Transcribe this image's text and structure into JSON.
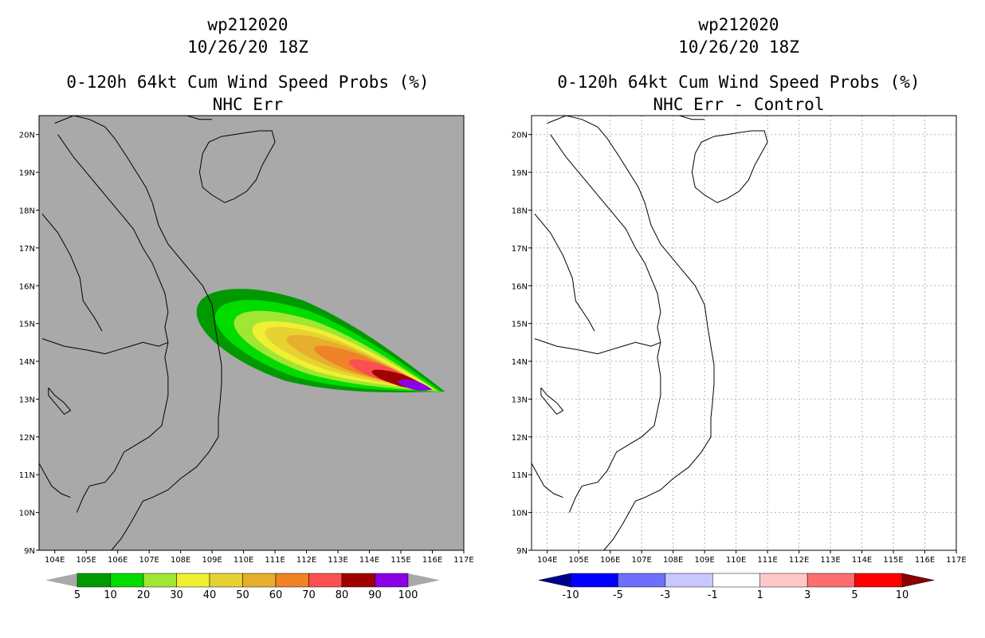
{
  "colors": {
    "left_background": "#a9a9a9",
    "right_background": "#ffffff",
    "prob_levels": [
      "#009a00",
      "#00dc00",
      "#a0e632",
      "#f0f032",
      "#e6d232",
      "#e6af2d",
      "#f08228",
      "#fa5050",
      "#a00000",
      "#8c00e6"
    ],
    "diff_levels": [
      "#00008c",
      "#0000ff",
      "#6e6eff",
      "#c8c8ff",
      "#ffffff",
      "#ffc8c8",
      "#ff6e6e",
      "#ff0000",
      "#8c0000"
    ]
  },
  "chart_data": [
    {
      "type": "heatmap",
      "title_lines": [
        "wp212020",
        "10/26/20 18Z",
        "0-120h 64kt Cum Wind Speed Probs (%)",
        "NHC Err"
      ],
      "xlim": [
        103.5,
        117
      ],
      "ylim": [
        9,
        20.5
      ],
      "x_ticks": [
        104,
        105,
        106,
        107,
        108,
        109,
        110,
        111,
        112,
        113,
        114,
        115,
        116,
        117
      ],
      "x_tick_labels": [
        "104E",
        "105E",
        "106E",
        "107E",
        "108E",
        "109E",
        "110E",
        "111E",
        "112E",
        "113E",
        "114E",
        "115E",
        "116E",
        "117E"
      ],
      "y_ticks": [
        9,
        10,
        11,
        12,
        13,
        14,
        15,
        16,
        17,
        18,
        19,
        20
      ],
      "y_tick_labels": [
        "9N",
        "10N",
        "11N",
        "12N",
        "13N",
        "14N",
        "15N",
        "16N",
        "17N",
        "18N",
        "19N",
        "20N"
      ],
      "grid": false,
      "colorbar": {
        "labels": [
          "5",
          "10",
          "20",
          "30",
          "40",
          "50",
          "60",
          "70",
          "80",
          "90",
          "100"
        ],
        "arrows": "both"
      },
      "probability_contours": [
        {
          "level": 5,
          "center": [
            111.6,
            14.55
          ],
          "along_deg": 3.2,
          "across_deg": 1.1,
          "tip": [
            116.4,
            13.2
          ]
        },
        {
          "level": 10,
          "center": [
            111.9,
            14.45
          ],
          "along_deg": 2.9,
          "across_deg": 0.9,
          "tip": [
            116.3,
            13.2
          ]
        },
        {
          "level": 20,
          "center": [
            112.2,
            14.35
          ],
          "along_deg": 2.6,
          "across_deg": 0.7,
          "tip": [
            116.2,
            13.2
          ]
        },
        {
          "level": 30,
          "center": [
            112.5,
            14.25
          ],
          "along_deg": 2.3,
          "across_deg": 0.55,
          "tip": [
            116.1,
            13.25
          ]
        },
        {
          "level": 40,
          "center": [
            112.7,
            14.2
          ],
          "along_deg": 2.1,
          "across_deg": 0.43,
          "tip": [
            116.0,
            13.25
          ]
        },
        {
          "level": 50,
          "center": [
            113.1,
            14.1
          ],
          "along_deg": 1.8,
          "across_deg": 0.33,
          "tip": [
            116.0,
            13.25
          ]
        },
        {
          "level": 60,
          "center": [
            113.6,
            13.95
          ],
          "along_deg": 1.4,
          "across_deg": 0.25,
          "tip": [
            116.0,
            13.25
          ]
        },
        {
          "level": 70,
          "center": [
            114.4,
            13.7
          ],
          "along_deg": 1.1,
          "across_deg": 0.2,
          "tip": [
            116.0,
            13.25
          ]
        },
        {
          "level": 80,
          "center": [
            115.0,
            13.5
          ],
          "along_deg": 0.95,
          "across_deg": 0.16,
          "tip": [
            116.0,
            13.25
          ]
        },
        {
          "level": 90,
          "center": [
            115.5,
            13.35
          ],
          "along_deg": 0.6,
          "across_deg": 0.12,
          "tip": [
            116.0,
            13.25
          ]
        }
      ]
    },
    {
      "type": "heatmap",
      "title_lines": [
        "wp212020",
        "10/26/20 18Z",
        "0-120h 64kt Cum Wind Speed Probs (%)",
        "NHC Err - Control"
      ],
      "xlim": [
        103.5,
        117
      ],
      "ylim": [
        9,
        20.5
      ],
      "x_ticks": [
        104,
        105,
        106,
        107,
        108,
        109,
        110,
        111,
        112,
        113,
        114,
        115,
        116,
        117
      ],
      "x_tick_labels": [
        "104E",
        "105E",
        "106E",
        "107E",
        "108E",
        "109E",
        "110E",
        "111E",
        "112E",
        "113E",
        "114E",
        "115E",
        "116E",
        "117E"
      ],
      "y_ticks": [
        9,
        10,
        11,
        12,
        13,
        14,
        15,
        16,
        17,
        18,
        19,
        20
      ],
      "y_tick_labels": [
        "9N",
        "10N",
        "11N",
        "12N",
        "13N",
        "14N",
        "15N",
        "16N",
        "17N",
        "18N",
        "19N",
        "20N"
      ],
      "grid": true,
      "colorbar": {
        "labels": [
          "-10",
          "-5",
          "-3",
          "-1",
          "1",
          "3",
          "5",
          "10"
        ],
        "arrows": "both"
      },
      "difference_contours": []
    }
  ],
  "coastlines": {
    "vietnam_china_coast": [
      [
        104.0,
        20.3
      ],
      [
        104.6,
        20.5
      ],
      [
        105.1,
        20.4
      ],
      [
        105.6,
        20.2
      ],
      [
        105.9,
        19.9
      ],
      [
        106.3,
        19.4
      ],
      [
        106.6,
        19.0
      ],
      [
        106.9,
        18.6
      ],
      [
        107.1,
        18.2
      ],
      [
        107.3,
        17.6
      ],
      [
        107.6,
        17.1
      ],
      [
        107.9,
        16.8
      ],
      [
        108.3,
        16.4
      ],
      [
        108.7,
        16.0
      ],
      [
        109.0,
        15.5
      ],
      [
        109.1,
        14.9
      ],
      [
        109.2,
        14.4
      ],
      [
        109.3,
        13.9
      ],
      [
        109.3,
        13.4
      ],
      [
        109.25,
        12.9
      ],
      [
        109.2,
        12.5
      ],
      [
        109.2,
        12.0
      ],
      [
        108.9,
        11.6
      ],
      [
        108.5,
        11.2
      ],
      [
        108.0,
        10.9
      ],
      [
        107.6,
        10.6
      ],
      [
        107.1,
        10.4
      ],
      [
        106.8,
        10.3
      ],
      [
        106.6,
        10.0
      ],
      [
        106.4,
        9.7
      ],
      [
        106.1,
        9.3
      ],
      [
        105.8,
        9.0
      ]
    ],
    "china_coast": [
      [
        108.2,
        20.5
      ],
      [
        108.6,
        20.4
      ],
      [
        109.0,
        20.4
      ]
    ],
    "hainan": [
      [
        108.7,
        19.5
      ],
      [
        108.9,
        19.8
      ],
      [
        109.3,
        19.95
      ],
      [
        109.7,
        20.0
      ],
      [
        110.1,
        20.05
      ],
      [
        110.5,
        20.1
      ],
      [
        110.9,
        20.1
      ],
      [
        111.0,
        19.8
      ],
      [
        110.8,
        19.5
      ],
      [
        110.6,
        19.2
      ],
      [
        110.4,
        18.8
      ],
      [
        110.1,
        18.5
      ],
      [
        109.7,
        18.3
      ],
      [
        109.4,
        18.2
      ],
      [
        109.0,
        18.4
      ],
      [
        108.7,
        18.6
      ],
      [
        108.6,
        19.0
      ],
      [
        108.7,
        19.5
      ]
    ],
    "laos_vietnam_border": [
      [
        104.1,
        20.0
      ],
      [
        104.6,
        19.4
      ],
      [
        105.0,
        19.0
      ],
      [
        105.3,
        18.7
      ],
      [
        105.7,
        18.3
      ],
      [
        106.1,
        17.9
      ],
      [
        106.5,
        17.5
      ],
      [
        106.8,
        17.0
      ],
      [
        107.1,
        16.6
      ],
      [
        107.3,
        16.2
      ],
      [
        107.5,
        15.8
      ],
      [
        107.6,
        15.3
      ],
      [
        107.5,
        14.9
      ],
      [
        107.6,
        14.5
      ],
      [
        107.5,
        14.1
      ],
      [
        107.6,
        13.6
      ],
      [
        107.6,
        13.1
      ],
      [
        107.5,
        12.7
      ],
      [
        107.4,
        12.3
      ],
      [
        107.0,
        12.0
      ],
      [
        106.6,
        11.8
      ],
      [
        106.2,
        11.6
      ],
      [
        105.9,
        11.1
      ],
      [
        105.6,
        10.8
      ],
      [
        105.1,
        10.7
      ],
      [
        104.9,
        10.4
      ],
      [
        104.7,
        10.0
      ]
    ],
    "laos_cambodia_border": [
      [
        103.6,
        14.6
      ],
      [
        104.3,
        14.4
      ],
      [
        105.0,
        14.3
      ],
      [
        105.6,
        14.2
      ],
      [
        106.0,
        14.3
      ],
      [
        106.4,
        14.4
      ],
      [
        106.8,
        14.5
      ],
      [
        107.3,
        14.4
      ],
      [
        107.6,
        14.5
      ]
    ],
    "thai_laos_border": [
      [
        103.6,
        17.9
      ],
      [
        104.1,
        17.4
      ],
      [
        104.5,
        16.8
      ],
      [
        104.8,
        16.2
      ],
      [
        104.9,
        15.6
      ],
      [
        105.3,
        15.1
      ],
      [
        105.5,
        14.8
      ]
    ],
    "tonle_sap": [
      [
        103.8,
        13.3
      ],
      [
        104.0,
        13.1
      ],
      [
        104.3,
        12.9
      ],
      [
        104.5,
        12.7
      ],
      [
        104.3,
        12.6
      ],
      [
        104.0,
        12.9
      ],
      [
        103.8,
        13.1
      ],
      [
        103.8,
        13.3
      ]
    ],
    "cambodia_coast": [
      [
        103.5,
        11.3
      ],
      [
        103.7,
        11.0
      ],
      [
        103.9,
        10.7
      ],
      [
        104.2,
        10.5
      ],
      [
        104.5,
        10.4
      ]
    ]
  }
}
